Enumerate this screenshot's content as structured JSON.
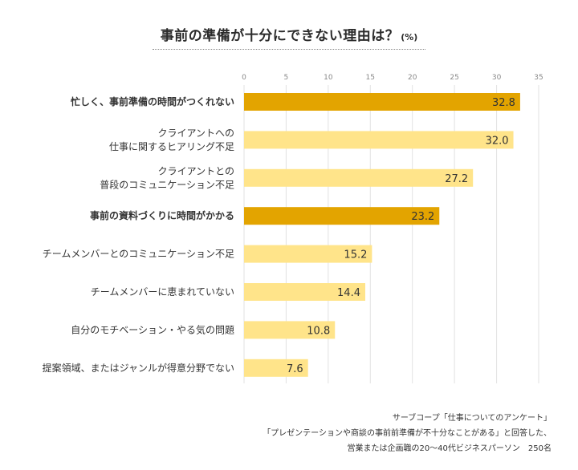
{
  "title": "事前の準備が十分にできない理由は？",
  "title_unit": "(%)",
  "source_lines": [
    "サーブコープ「仕事についてのアンケート」",
    "「プレゼンテーションや商談の事前前準備が不十分なことがある」と回答した、",
    "営業または企画職の20〜40代ビジネスパーソン　250名"
  ],
  "colors": {
    "highlight": "#e3a400",
    "normal": "#ffe48a",
    "grid": "#e2e2e2",
    "axis_text": "#888888"
  },
  "chart_data": {
    "type": "bar",
    "orientation": "horizontal",
    "xlim": [
      0,
      35
    ],
    "xticks": [
      0,
      5,
      10,
      15,
      20,
      25,
      30,
      35
    ],
    "grid": true,
    "categories": [
      {
        "lines": [
          "忙しく、事前準備の時間がつくれない"
        ],
        "value": 32.8,
        "label": "32.8",
        "highlight": true
      },
      {
        "lines": [
          "クライアントへの",
          "仕事に関するヒアリング不足"
        ],
        "value": 32.0,
        "label": "32.0",
        "highlight": false
      },
      {
        "lines": [
          "クライアントとの",
          "普段のコミュニケーション不足"
        ],
        "value": 27.2,
        "label": "27.2",
        "highlight": false
      },
      {
        "lines": [
          "事前の資料づくりに時間がかかる"
        ],
        "value": 23.2,
        "label": "23.2",
        "highlight": true
      },
      {
        "lines": [
          "チームメンバーとのコミュニケーション不足"
        ],
        "value": 15.2,
        "label": "15.2",
        "highlight": false
      },
      {
        "lines": [
          "チームメンバーに恵まれていない"
        ],
        "value": 14.4,
        "label": "14.4",
        "highlight": false
      },
      {
        "lines": [
          "自分のモチベーション・やる気の問題"
        ],
        "value": 10.8,
        "label": "10.8",
        "highlight": false
      },
      {
        "lines": [
          "提案領域、またはジャンルが得意分野でない"
        ],
        "value": 7.6,
        "label": "7.6",
        "highlight": false
      }
    ]
  }
}
